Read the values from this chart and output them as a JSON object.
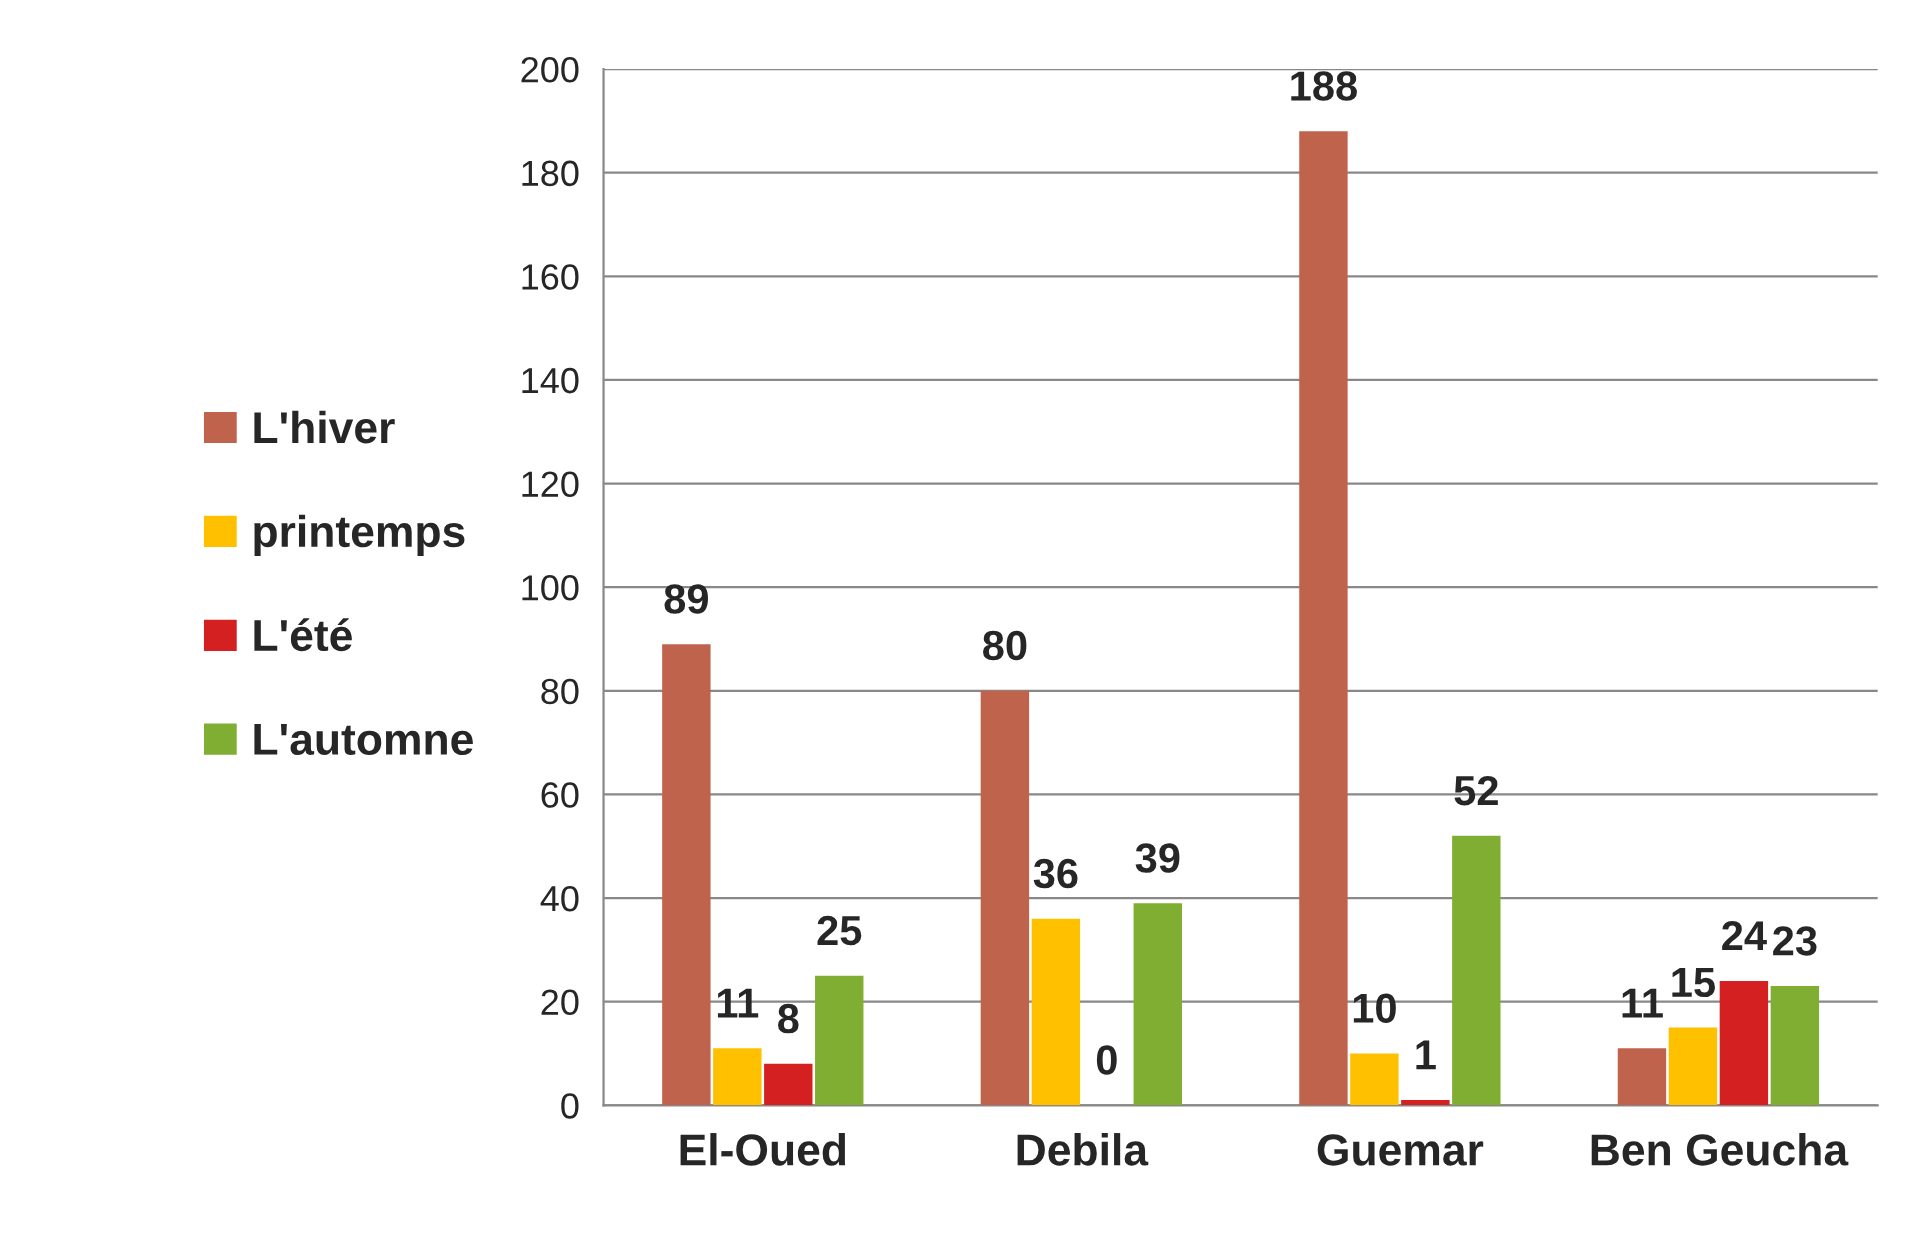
{
  "chart_data": {
    "type": "bar",
    "categories": [
      "El-Oued",
      "Debila",
      "Guemar",
      "Ben Geucha"
    ],
    "series": [
      {
        "name": "L'hiver",
        "color": "#c0634c",
        "values": [
          89,
          80,
          188,
          11
        ]
      },
      {
        "name": "printemps",
        "color": "#ffc000",
        "values": [
          11,
          36,
          10,
          15
        ]
      },
      {
        "name": "L'été",
        "color": "#d42020",
        "values": [
          8,
          0,
          1,
          24
        ]
      },
      {
        "name": "L'automne",
        "color": "#7fae32",
        "values": [
          25,
          39,
          52,
          23
        ]
      }
    ],
    "ylim": [
      0,
      200
    ],
    "yticks": [
      0,
      20,
      40,
      60,
      80,
      100,
      120,
      140,
      160,
      180,
      200
    ],
    "grid": "y",
    "legend": "left",
    "data_labels": true
  }
}
